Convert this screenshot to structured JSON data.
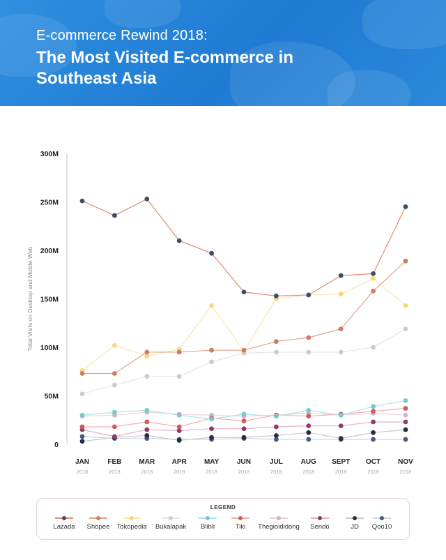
{
  "header": {
    "subtitle": "E-commerce Rewind 2018:",
    "title": "The Most Visited E-commerce in Southeast Asia"
  },
  "chart_data": {
    "type": "line",
    "categories": [
      "JAN",
      "FEB",
      "MAR",
      "APR",
      "MAY",
      "JUN",
      "JUL",
      "AUG",
      "SEPT",
      "OCT",
      "NOV"
    ],
    "category_years": [
      "2018",
      "2018",
      "2018",
      "2018",
      "2018",
      "2018",
      "2018",
      "2018",
      "2018",
      "2018",
      "2018"
    ],
    "ylabel": "Total Visits on Desktop and Mobile Web",
    "xlabel": "",
    "ylim": [
      0,
      300
    ],
    "yticks": [
      0,
      50,
      100,
      150,
      200,
      250,
      300
    ],
    "ytick_labels": [
      "0",
      "50M",
      "100M",
      "150M",
      "200M",
      "250M",
      "300M"
    ],
    "grid": false,
    "legend_title": "LEGEND",
    "legend_position": "bottom",
    "series": [
      {
        "name": "Lazada",
        "line_color": "#e08a6e",
        "dot_color": "#3b5068",
        "values": [
          251,
          236,
          253,
          210,
          197,
          157,
          153,
          154,
          174,
          176,
          245
        ]
      },
      {
        "name": "Shopee",
        "line_color": "#e0a48c",
        "dot_color": "#cf7c62",
        "values": [
          73,
          73,
          95,
          95,
          97,
          97,
          106,
          110,
          119,
          158,
          189
        ]
      },
      {
        "name": "Tokopedia",
        "line_color": "#fbe6b0",
        "dot_color": "#f8d77a",
        "values": [
          76,
          102,
          91,
          98,
          143,
          96,
          150,
          154,
          155,
          171,
          143
        ]
      },
      {
        "name": "Bukalapak",
        "line_color": "#e3e6ec",
        "dot_color": "#c8ccd6",
        "values": [
          52,
          61,
          70,
          70,
          85,
          94,
          95,
          95,
          95,
          100,
          119
        ]
      },
      {
        "name": "Blibli",
        "line_color": "#aee3e8",
        "dot_color": "#7cc7cf",
        "values": [
          30,
          33,
          35,
          30,
          26,
          31,
          29,
          35,
          30,
          39,
          45
        ]
      },
      {
        "name": "Tiki",
        "line_color": "#f4b0b0",
        "dot_color": "#d35a5a",
        "values": [
          18,
          18,
          23,
          18,
          27,
          24,
          30,
          29,
          31,
          34,
          37
        ]
      },
      {
        "name": "Thegioididong",
        "line_color": "#ead2de",
        "dot_color": "#d4b4c8",
        "values": [
          29,
          30,
          33,
          31,
          30,
          29,
          30,
          32,
          30,
          32,
          30
        ]
      },
      {
        "name": "Sendo",
        "line_color": "#e1b6cc",
        "dot_color": "#8a3f66",
        "values": [
          15,
          8,
          15,
          14,
          16,
          16,
          18,
          19,
          19,
          23,
          23
        ]
      },
      {
        "name": "JD",
        "line_color": "#c7c9d3",
        "dot_color": "#2c2c3e",
        "values": [
          3,
          7,
          9,
          4,
          7,
          7,
          9,
          12,
          6,
          12,
          15
        ]
      },
      {
        "name": "Qoo10",
        "line_color": "#cfd5e1",
        "dot_color": "#4a5a7e",
        "values": [
          8,
          6,
          6,
          5,
          5,
          6,
          5,
          5,
          5,
          5,
          5
        ]
      }
    ]
  }
}
